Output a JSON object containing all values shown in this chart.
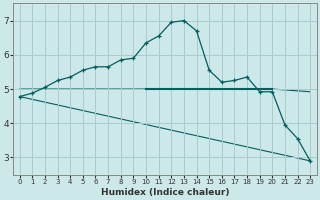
{
  "title": "",
  "xlabel": "Humidex (Indice chaleur)",
  "ylabel": "",
  "bg_color": "#cce8e8",
  "line_color": "#006060",
  "grid_color": "#aacccc",
  "xlim": [
    -0.5,
    23.5
  ],
  "ylim": [
    2.5,
    7.5
  ],
  "xticks": [
    0,
    1,
    2,
    3,
    4,
    5,
    6,
    7,
    8,
    9,
    10,
    11,
    12,
    13,
    14,
    15,
    16,
    17,
    18,
    19,
    20,
    21,
    22,
    23
  ],
  "yticks": [
    3,
    4,
    5,
    6,
    7
  ],
  "curve1_x": [
    0,
    1,
    2,
    3,
    4,
    5,
    6,
    7,
    8,
    9,
    10,
    11,
    12,
    13,
    14,
    15,
    16,
    17,
    18,
    19,
    20,
    21,
    22,
    23
  ],
  "curve1_y": [
    4.78,
    4.88,
    5.05,
    5.25,
    5.35,
    5.55,
    5.65,
    5.65,
    5.85,
    5.9,
    6.35,
    6.55,
    6.95,
    7.0,
    6.7,
    5.55,
    5.2,
    5.25,
    5.35,
    4.92,
    4.92,
    3.95,
    3.55,
    2.9
  ],
  "curve2_x": [
    0,
    23
  ],
  "curve2_y": [
    4.78,
    2.9
  ],
  "curve3_x": [
    0,
    20,
    23
  ],
  "curve3_y": [
    5.0,
    5.0,
    4.92
  ],
  "curve4_x": [
    10,
    20
  ],
  "curve4_y": [
    5.0,
    5.0
  ],
  "xlabel_fontsize": 6.5,
  "tick_fontsize_x": 5.0,
  "tick_fontsize_y": 6.5
}
